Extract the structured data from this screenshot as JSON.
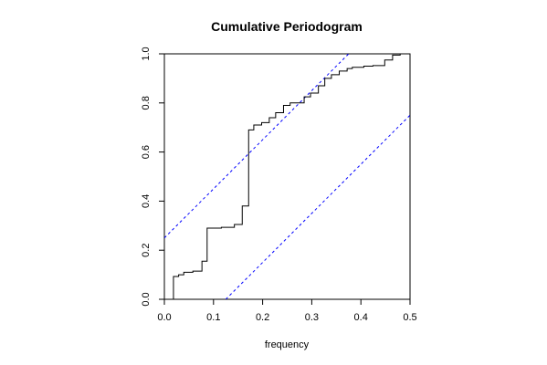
{
  "chart_data": {
    "type": "line",
    "title": "Cumulative Periodogram",
    "xlabel": "frequency",
    "ylabel": "",
    "xlim": [
      0,
      0.5
    ],
    "ylim": [
      0,
      1
    ],
    "x_ticks": [
      "0.0",
      "0.1",
      "0.2",
      "0.3",
      "0.4",
      "0.5"
    ],
    "y_ticks": [
      "0.0",
      "0.2",
      "0.4",
      "0.6",
      "0.8",
      "1.0"
    ],
    "grid": false,
    "legend": "none",
    "series": [
      {
        "style": "step",
        "color": "#000000",
        "x": [
          0.0185,
          0.029,
          0.0395,
          0.058,
          0.0765,
          0.087,
          0.116,
          0.1425,
          0.1585,
          0.1715,
          0.182,
          0.198,
          0.2135,
          0.2265,
          0.2425,
          0.256,
          0.2845,
          0.2975,
          0.3135,
          0.3265,
          0.34,
          0.356,
          0.372,
          0.3825,
          0.406,
          0.4245,
          0.4485,
          0.4645,
          0.48
        ],
        "y": [
          0.093,
          0.1,
          0.11,
          0.115,
          0.155,
          0.29,
          0.293,
          0.305,
          0.38,
          0.69,
          0.71,
          0.72,
          0.74,
          0.76,
          0.79,
          0.8,
          0.825,
          0.84,
          0.87,
          0.9,
          0.915,
          0.93,
          0.94,
          0.945,
          0.95,
          0.952,
          0.975,
          0.995,
          1.0
        ]
      },
      {
        "style": "dashed",
        "color": "#0000ff",
        "x": [
          0,
          0.375
        ],
        "y": [
          0.25,
          1.0
        ]
      },
      {
        "style": "dashed",
        "color": "#0000ff",
        "x": [
          0.125,
          0.5
        ],
        "y": [
          0.0,
          0.75
        ]
      }
    ]
  }
}
